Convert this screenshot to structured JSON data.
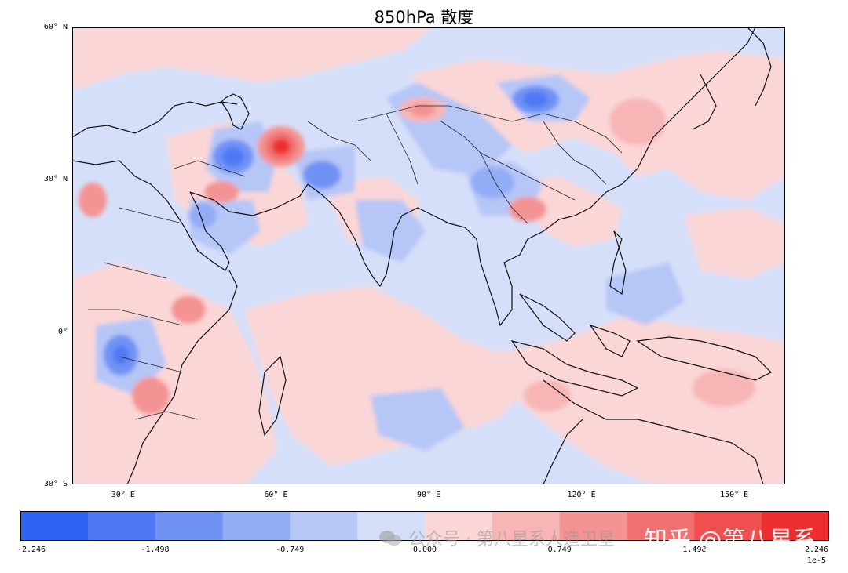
{
  "title": "850hPa 散度",
  "map": {
    "domain": {
      "lon_range": [
        20,
        160
      ],
      "lat_range": [
        -30,
        60
      ]
    },
    "lat_labels": [
      {
        "lat": 60,
        "text": "60° N"
      },
      {
        "lat": 30,
        "text": "30° N"
      },
      {
        "lat": 0,
        "text": "0°"
      },
      {
        "lat": -30,
        "text": "30° S"
      }
    ],
    "lon_labels": [
      {
        "lon": 30,
        "text": "30° E"
      },
      {
        "lon": 60,
        "text": "60° E"
      },
      {
        "lon": 90,
        "text": "90° E"
      },
      {
        "lon": 120,
        "text": "120° E"
      },
      {
        "lon": 150,
        "text": "150° E"
      }
    ],
    "field": "divergence",
    "level": "850hPa"
  },
  "colorbar": {
    "colors": [
      "#2e62f2",
      "#4f79f4",
      "#7092f5",
      "#93acf6",
      "#b5c6f7",
      "#d6dff9",
      "#fbd6d6",
      "#f7b5b5",
      "#f49393",
      "#f27070",
      "#f04f4f",
      "#ee2e2e"
    ],
    "min": -2.246,
    "max": 2.246,
    "ticks": [
      {
        "value": -2.246,
        "label": "-2.246"
      },
      {
        "value": -1.498,
        "label": "-1.498"
      },
      {
        "value": -0.749,
        "label": "-0.749"
      },
      {
        "value": 0,
        "label": "0.000"
      },
      {
        "value": 0.749,
        "label": "0.749"
      },
      {
        "value": 1.498,
        "label": "1.498"
      },
      {
        "value": 2.246,
        "label": "2.246"
      }
    ],
    "scale_label": "1e-5"
  },
  "watermarks": {
    "wechat": "公众号 · 第八星系人造卫星",
    "zhihu": "知乎 @第八星系"
  }
}
